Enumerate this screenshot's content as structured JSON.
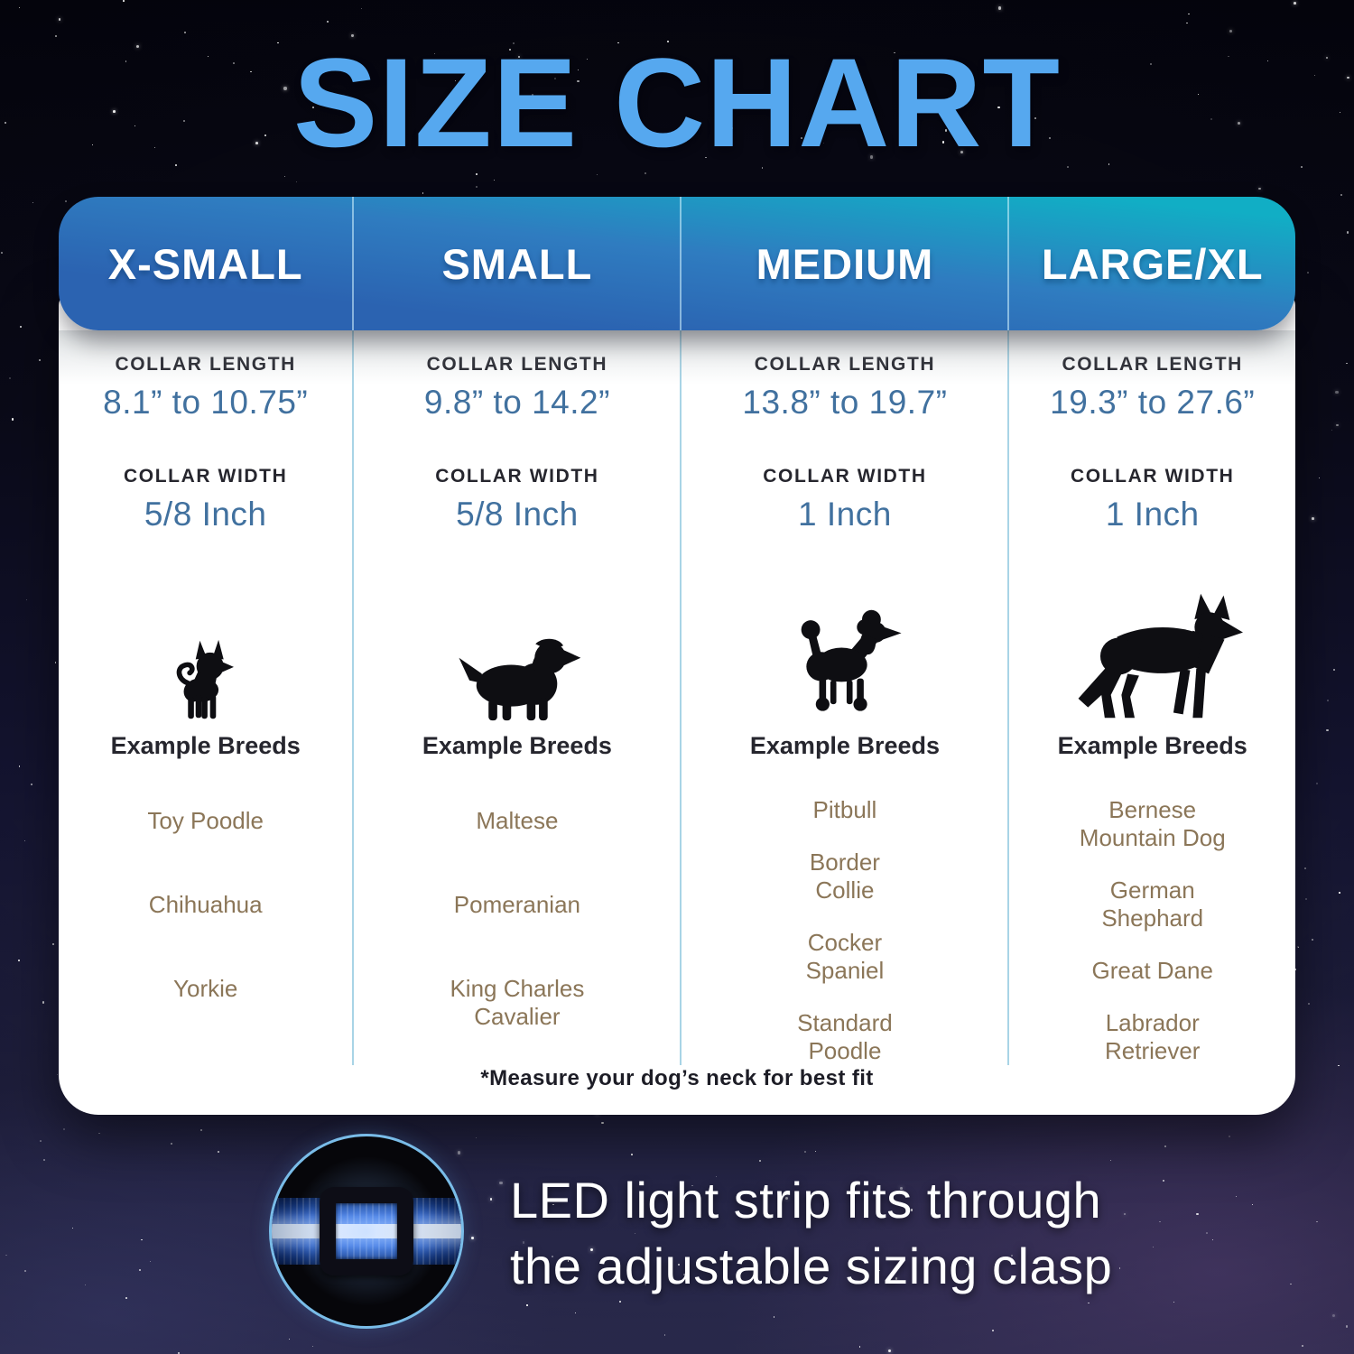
{
  "title": "SIZE CHART",
  "labels": {
    "collar_length": "COLLAR LENGTH",
    "collar_width": "COLLAR WIDTH",
    "breeds_heading": "Example Breeds"
  },
  "columns": [
    {
      "size": "X-SMALL",
      "collar_length": "8.1” to 10.75”",
      "collar_width": "5/8 Inch",
      "dog_icon": "chihuahua-silhouette",
      "breeds": [
        "Toy Poodle",
        "Chihuahua",
        "Yorkie"
      ]
    },
    {
      "size": "SMALL",
      "collar_length": "9.8” to 14.2”",
      "collar_width": "5/8 Inch",
      "dog_icon": "cavalier-spaniel-silhouette",
      "breeds": [
        "Maltese",
        "Pomeranian",
        "King Charles\nCavalier"
      ]
    },
    {
      "size": "MEDIUM",
      "collar_length": "13.8” to 19.7”",
      "collar_width": "1 Inch",
      "dog_icon": "poodle-silhouette",
      "breeds": [
        "Pitbull",
        "Border\nCollie",
        "Cocker\nSpaniel",
        "Standard\nPoodle"
      ]
    },
    {
      "size": "LARGE/XL",
      "collar_length": "19.3” to 27.6”",
      "collar_width": "1 Inch",
      "dog_icon": "german-shepherd-silhouette",
      "breeds": [
        "Bernese\nMountain Dog",
        "German\nShephard",
        "Great Dane",
        "Labrador\nRetriever"
      ]
    }
  ],
  "footnote": "*Measure your dog’s neck for best fit",
  "callout": {
    "line1": "LED light strip fits through",
    "line2": "the adjustable sizing clasp",
    "image": "collar-clasp-led-photo"
  },
  "colors": {
    "title_blue": "#56a8ef",
    "header_gradient_blue": "#2b63b1",
    "header_gradient_teal": "#11aec5",
    "header_text": "#ffffff",
    "value_blue": "#41719f",
    "label_dark": "#26262e",
    "breed_brown": "#8b7658",
    "divider_blue": "#a8d4e6",
    "collar_blue": "#3f7cf0",
    "led_stripe_white": "#ffffff"
  }
}
